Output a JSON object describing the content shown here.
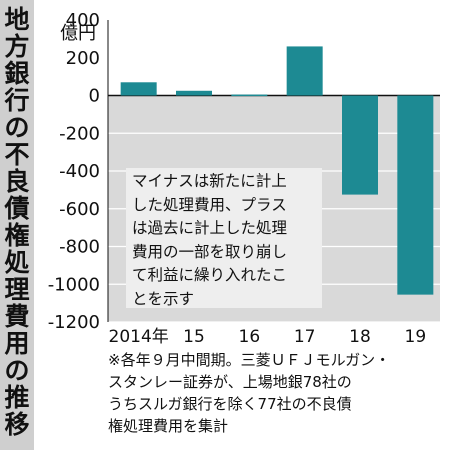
{
  "title": "地方銀行の不良債権処理費用の推移",
  "chart_data": {
    "type": "bar",
    "unit_label": "億円",
    "categories": [
      "2014年",
      "15",
      "16",
      "17",
      "18",
      "19"
    ],
    "values": [
      70,
      25,
      5,
      260,
      -525,
      -1055
    ],
    "yticks": [
      "400",
      "200",
      "0",
      "-200",
      "-400",
      "-600",
      "-800",
      "-1000",
      "-1200"
    ],
    "ylim": [
      -1200,
      400
    ],
    "bar_color": "#1d8a93",
    "plot_background": "#d9d9d9",
    "annotation": "マイナスは新たに計上\nした処理費用、プラス\nは過去に計上した処理\n費用の一部を取り崩し\nて利益に繰り入れたこ\nとを示す"
  },
  "footnote": "※各年９月中間期。三菱ＵＦＪモルガン・\nスタンレー証券が、上場地銀78社の\nうちスルガ銀行を除く77社の不良債\n権処理費用を集計"
}
